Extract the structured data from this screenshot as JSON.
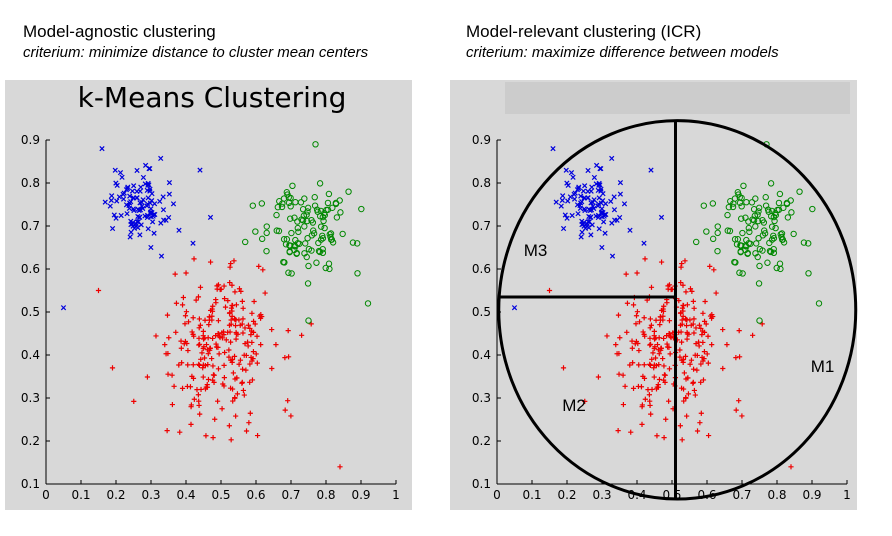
{
  "left_panel": {
    "heading": "Model-agnostic clustering",
    "criterion": "criterium: minimize distance to cluster mean centers",
    "plot_title": "k-Means Clustering"
  },
  "right_panel": {
    "heading": "Model-relevant clustering (ICR)",
    "criterion": "criterium: maximize difference between models",
    "region_labels": [
      "M1",
      "M2",
      "M3"
    ]
  },
  "colors": {
    "background": "#d8d8d8",
    "blue": "#0000dd",
    "red": "#ee0000",
    "green": "#008800"
  },
  "chart_data": [
    {
      "type": "scatter",
      "title": "k-Means Clustering",
      "xlim": [
        0,
        1
      ],
      "ylim": [
        0.1,
        0.9
      ],
      "x_ticks": [
        "0",
        "0.1",
        "0.2",
        "0.3",
        "0.4",
        "0.5",
        "0.6",
        "0.7",
        "0.8",
        "0.9",
        "1"
      ],
      "y_ticks": [
        "0.1",
        "0.2",
        "0.3",
        "0.4",
        "0.5",
        "0.6",
        "0.7",
        "0.8",
        "0.9"
      ],
      "series": [
        {
          "marker": "x",
          "color": "blue",
          "center": [
            0.26,
            0.75
          ],
          "spread": [
            0.04,
            0.04
          ],
          "count": 110,
          "extra_points": [
            [
              0.05,
              0.51
            ],
            [
              0.16,
              0.88
            ],
            [
              0.44,
              0.83
            ],
            [
              0.47,
              0.72
            ],
            [
              0.38,
              0.69
            ],
            [
              0.33,
              0.63
            ],
            [
              0.42,
              0.66
            ]
          ]
        },
        {
          "marker": "+",
          "color": "red",
          "center": [
            0.5,
            0.42
          ],
          "spread": [
            0.08,
            0.09
          ],
          "count": 260,
          "extra_points": [
            [
              0.84,
              0.14
            ],
            [
              0.19,
              0.37
            ],
            [
              0.15,
              0.55
            ]
          ]
        },
        {
          "marker": "o",
          "color": "green",
          "center": [
            0.74,
            0.7
          ],
          "spread": [
            0.06,
            0.05
          ],
          "count": 120,
          "extra_points": [
            [
              0.92,
              0.52
            ],
            [
              0.89,
              0.59
            ],
            [
              0.77,
              0.89
            ],
            [
              0.75,
              0.48
            ]
          ]
        }
      ],
      "grid": false
    },
    {
      "type": "scatter",
      "title": "",
      "xlim": [
        0,
        1
      ],
      "ylim": [
        0.1,
        0.9
      ],
      "x_ticks": [
        "0",
        "0.1",
        "0.2",
        "0.3",
        "0.4",
        "0.5",
        "0.6",
        "0.7",
        "0.8",
        "0.9",
        "1"
      ],
      "y_ticks": [
        "0.1",
        "0.2",
        "0.3",
        "0.4",
        "0.5",
        "0.6",
        "0.7",
        "0.8",
        "0.9"
      ],
      "series": "same as left panel",
      "grid": false,
      "partition": {
        "ellipse": {
          "center": [
            0.515,
            0.505
          ],
          "radius_x": 0.51,
          "radius_y": 0.44
        },
        "vertical_line_x": 0.51,
        "horizontal_line_y": 0.535,
        "regions": {
          "M1": [
            0.93,
            0.36
          ],
          "M2": [
            0.22,
            0.27
          ],
          "M3": [
            0.11,
            0.63
          ]
        }
      }
    }
  ]
}
